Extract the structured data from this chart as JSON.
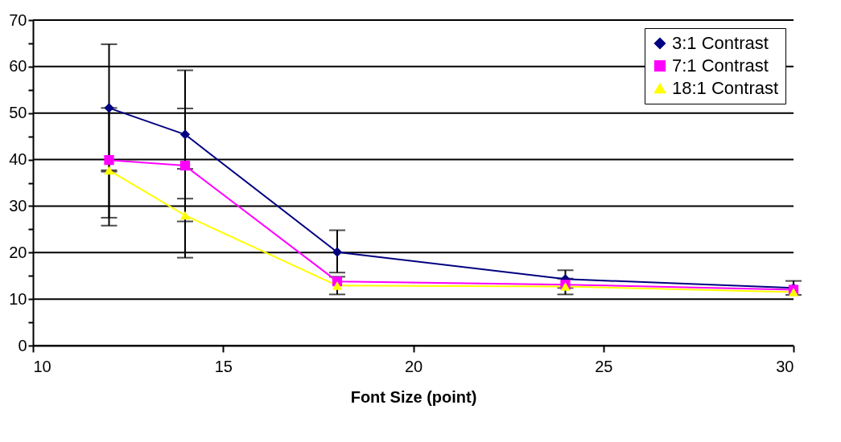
{
  "chart_data": {
    "type": "line",
    "xlabel": "Font Size (point)",
    "x": [
      12,
      14,
      18,
      24,
      30
    ],
    "series": [
      {
        "name": "3:1 Contrast",
        "color": "#000080",
        "marker": "diamond",
        "values": [
          51.1,
          45.4,
          20.1,
          14.3,
          12.4
        ],
        "errors": [
          [
            37.4,
            64.8
          ],
          [
            31.6,
            59.2
          ],
          [
            15.7,
            24.8
          ],
          [
            12.4,
            16.2
          ],
          [
            10.9,
            13.9
          ]
        ]
      },
      {
        "name": "7:1 Contrast",
        "color": "#ff00ff",
        "marker": "square",
        "values": [
          39.9,
          38.7,
          13.8,
          13.1,
          12.0
        ],
        "errors": [
          [
            27.5,
            51.1
          ],
          [
            26.7,
            51.0
          ],
          null,
          null,
          null
        ]
      },
      {
        "name": "18:1 Contrast",
        "color": "#ffff00",
        "marker": "triangle",
        "values": [
          37.7,
          28.0,
          12.9,
          12.7,
          11.5
        ],
        "errors": [
          [
            25.8,
            37.7
          ],
          [
            18.9,
            38.0
          ],
          [
            11.0,
            14.8
          ],
          [
            11.0,
            14.4
          ],
          null
        ]
      }
    ],
    "xlim": [
      10,
      30
    ],
    "xticks": [
      10,
      15,
      20,
      25,
      30
    ],
    "ylim": [
      0,
      70
    ],
    "yticks": [
      0,
      {
        "value": 5,
        "label": null
      },
      10,
      {
        "value": 15,
        "label": null
      },
      20,
      {
        "value": 25,
        "label": null
      },
      30,
      {
        "value": 35,
        "label": null
      },
      40,
      {
        "value": 45,
        "label": null
      },
      50,
      {
        "value": 55,
        "label": null
      },
      60,
      {
        "value": 65,
        "label": null
      },
      70
    ],
    "grid": "y",
    "legend": "top right",
    "line_style": "solid"
  }
}
